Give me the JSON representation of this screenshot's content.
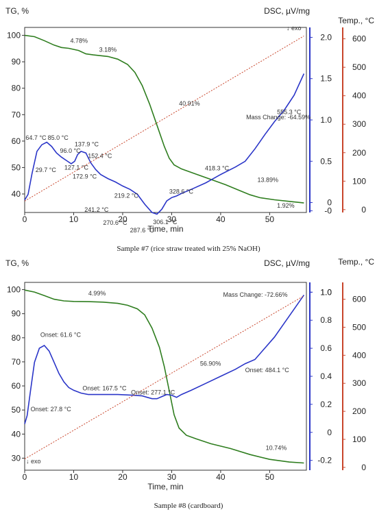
{
  "colors": {
    "tg": "#2e7d1e",
    "dsc": "#2a35c8",
    "temp": "#c8442a",
    "grid": "#c9c9c9",
    "frame": "#333333"
  },
  "chart_data": [
    {
      "type": "line",
      "caption": "Sample #7 (rice straw treated with 25% NaOH)",
      "xlabel": "Time, min",
      "xlim": [
        0,
        57.5
      ],
      "xticks": [
        "0",
        "10",
        "20",
        "30",
        "40",
        "50"
      ],
      "tg": {
        "axis_label": "TG, %",
        "ylim": [
          33,
          103
        ],
        "ticks": [
          "100",
          "90",
          "80",
          "70",
          "60",
          "50",
          "40"
        ]
      },
      "dsc": {
        "axis_label": "DSC, µV/mg",
        "ylim": [
          -0.12,
          2.12
        ],
        "ticks": [
          "2.0",
          "1.5",
          "1.0",
          "0.5",
          "0",
          "-0"
        ]
      },
      "temp": {
        "axis_label": "Temp., °C",
        "ylim": [
          -10,
          640
        ],
        "ticks": [
          "600",
          "500",
          "400",
          "300",
          "200",
          "100",
          "0"
        ]
      },
      "exo_label": "↓ exo",
      "series": [
        {
          "axis": "tg",
          "points": [
            [
              0,
              100
            ],
            [
              2,
              99.5
            ],
            [
              4,
              98
            ],
            [
              6,
              96.3
            ],
            [
              7.5,
              95.4
            ],
            [
              9,
              95.1
            ],
            [
              11,
              94.3
            ],
            [
              12.5,
              93
            ],
            [
              14,
              92.6
            ],
            [
              17,
              92
            ],
            [
              19,
              91
            ],
            [
              21,
              89
            ],
            [
              22.5,
              86
            ],
            [
              24,
              81
            ],
            [
              25.5,
              74
            ],
            [
              27,
              66
            ],
            [
              28.5,
              58
            ],
            [
              29.5,
              53.5
            ],
            [
              30.5,
              51
            ],
            [
              32,
              49.5
            ],
            [
              35,
              47.5
            ],
            [
              38,
              45.5
            ],
            [
              41,
              43.5
            ],
            [
              44,
              41.2
            ],
            [
              46,
              39.7
            ],
            [
              48,
              38.6
            ],
            [
              51,
              37.8
            ],
            [
              54,
              37.2
            ],
            [
              57,
              36.6
            ]
          ]
        },
        {
          "axis": "dsc",
          "points": [
            [
              0,
              0.03
            ],
            [
              0.7,
              0.1
            ],
            [
              1.5,
              0.35
            ],
            [
              2.5,
              0.62
            ],
            [
              3.5,
              0.7
            ],
            [
              4.5,
              0.73
            ],
            [
              5.5,
              0.68
            ],
            [
              6.5,
              0.6
            ],
            [
              7.5,
              0.55
            ],
            [
              8.5,
              0.51
            ],
            [
              9.5,
              0.47
            ],
            [
              10.2,
              0.5
            ],
            [
              10.8,
              0.58
            ],
            [
              11.5,
              0.62
            ],
            [
              12.5,
              0.6
            ],
            [
              13.5,
              0.48
            ],
            [
              14.5,
              0.4
            ],
            [
              15.5,
              0.34
            ],
            [
              17,
              0.29
            ],
            [
              18.5,
              0.25
            ],
            [
              20,
              0.2
            ],
            [
              21.5,
              0.16
            ],
            [
              23,
              0.1
            ],
            [
              24.5,
              -0.02
            ],
            [
              26,
              -0.12
            ],
            [
              27,
              -0.14
            ],
            [
              28,
              -0.08
            ],
            [
              29,
              0.02
            ],
            [
              30,
              0.06
            ],
            [
              31,
              0.08
            ],
            [
              32,
              0.11
            ],
            [
              34,
              0.16
            ],
            [
              37,
              0.24
            ],
            [
              40,
              0.34
            ],
            [
              43,
              0.43
            ],
            [
              45,
              0.5
            ],
            [
              47,
              0.65
            ],
            [
              49,
              0.82
            ],
            [
              51,
              0.98
            ],
            [
              53,
              1.12
            ],
            [
              55,
              1.3
            ],
            [
              57,
              1.56
            ]
          ]
        },
        {
          "axis": "temp",
          "points": [
            [
              0,
              30
            ],
            [
              57,
              610
            ]
          ]
        }
      ],
      "annotations": [
        {
          "text": "4.78%",
          "x": 9.3,
          "axis": "tg",
          "y": 97.2
        },
        {
          "text": "3.18%",
          "x": 15.2,
          "axis": "tg",
          "y": 93.8
        },
        {
          "text": "40.91%",
          "x": 31.5,
          "axis": "tg",
          "y": 73.5
        },
        {
          "text": "Mass Change: -64.59%",
          "x": 45.2,
          "axis": "tg",
          "y": 68.2
        },
        {
          "text": "13.89%",
          "x": 47.5,
          "axis": "tg",
          "y": 44.5
        },
        {
          "text": "1.92%",
          "x": 51.5,
          "axis": "tg",
          "y": 34.8
        },
        {
          "text": "64.7 °C",
          "x": 0.2,
          "axis": "dsc",
          "y": 0.76
        },
        {
          "text": "85.0 °C",
          "x": 4.7,
          "axis": "dsc",
          "y": 0.76
        },
        {
          "text": "96.0 °C",
          "x": 7.2,
          "axis": "dsc",
          "y": 0.6
        },
        {
          "text": "137.9 °C",
          "x": 10.2,
          "axis": "dsc",
          "y": 0.68
        },
        {
          "text": "152.4 °C",
          "x": 12.9,
          "axis": "dsc",
          "y": 0.54
        },
        {
          "text": "29.7 °C",
          "x": 2.2,
          "axis": "dsc",
          "y": 0.37
        },
        {
          "text": "127.1 °C",
          "x": 8.1,
          "axis": "dsc",
          "y": 0.4
        },
        {
          "text": "172.9 °C",
          "x": 9.8,
          "axis": "dsc",
          "y": 0.29
        },
        {
          "text": "219.2 °C",
          "x": 18.3,
          "axis": "dsc",
          "y": 0.06
        },
        {
          "text": "241.2 °C",
          "x": 12.2,
          "axis": "dsc",
          "y": -0.11
        },
        {
          "text": "270.6 °C",
          "x": 16,
          "axis": "dsc",
          "y": -0.27
        },
        {
          "text": "287.6 °C",
          "x": 21.5,
          "axis": "dsc",
          "y": -0.36
        },
        {
          "text": "306.1 °C",
          "x": 26.2,
          "axis": "dsc",
          "y": -0.26
        },
        {
          "text": "328.6 °C",
          "x": 29.5,
          "axis": "dsc",
          "y": 0.11
        },
        {
          "text": "418.3 °C",
          "x": 36.8,
          "axis": "dsc",
          "y": 0.39
        },
        {
          "text": "555.3 °C",
          "x": 51.5,
          "axis": "dsc",
          "y": 1.07
        }
      ]
    },
    {
      "type": "line",
      "caption": "Sample #8 (cardboard)",
      "xlabel": "Time, min",
      "xlim": [
        0,
        57.5
      ],
      "xticks": [
        "0",
        "10",
        "20",
        "30",
        "40",
        "50"
      ],
      "tg": {
        "axis_label": "TG, %",
        "ylim": [
          25,
          103
        ],
        "ticks": [
          "100",
          "90",
          "80",
          "70",
          "60",
          "50",
          "40",
          "30"
        ]
      },
      "dsc": {
        "axis_label": "DSC, µV/mg",
        "ylim": [
          -0.27,
          1.07
        ],
        "ticks": [
          "1.0",
          "1.0",
          "0.8",
          "0.6",
          "0.4",
          "0.2",
          "0",
          "-0.2"
        ]
      },
      "temp": {
        "axis_label": "Temp., °C",
        "ylim": [
          -10,
          660
        ],
        "ticks": [
          "600",
          "500",
          "400",
          "300",
          "200",
          "100",
          "0"
        ]
      },
      "exo_label": "↓ exo",
      "series": [
        {
          "axis": "tg",
          "points": [
            [
              0,
              99.8
            ],
            [
              2,
              99
            ],
            [
              4,
              97.5
            ],
            [
              6,
              96
            ],
            [
              8,
              95.3
            ],
            [
              10,
              95.1
            ],
            [
              13,
              95
            ],
            [
              16,
              94.8
            ],
            [
              19,
              94.3
            ],
            [
              21,
              93.5
            ],
            [
              23,
              92
            ],
            [
              24.5,
              89.5
            ],
            [
              26,
              84
            ],
            [
              27.5,
              76
            ],
            [
              28.5,
              68
            ],
            [
              29.5,
              58
            ],
            [
              30.5,
              48
            ],
            [
              31.5,
              42.5
            ],
            [
              33,
              39.5
            ],
            [
              35,
              38
            ],
            [
              38,
              36
            ],
            [
              42,
              34
            ],
            [
              46,
              31.5
            ],
            [
              50,
              29.5
            ],
            [
              54,
              28.4
            ],
            [
              57,
              28
            ]
          ]
        },
        {
          "axis": "dsc",
          "points": [
            [
              0,
              0.06
            ],
            [
              0.5,
              0.12
            ],
            [
              1.2,
              0.3
            ],
            [
              2,
              0.5
            ],
            [
              3,
              0.6
            ],
            [
              4,
              0.62
            ],
            [
              5,
              0.58
            ],
            [
              6,
              0.5
            ],
            [
              7,
              0.42
            ],
            [
              8,
              0.36
            ],
            [
              9,
              0.32
            ],
            [
              10,
              0.3
            ],
            [
              11.5,
              0.28
            ],
            [
              13,
              0.27
            ],
            [
              16,
              0.27
            ],
            [
              19,
              0.27
            ],
            [
              22,
              0.265
            ],
            [
              24,
              0.26
            ],
            [
              25,
              0.25
            ],
            [
              26,
              0.24
            ],
            [
              27,
              0.24
            ],
            [
              28,
              0.255
            ],
            [
              29,
              0.27
            ],
            [
              30,
              0.265
            ],
            [
              31,
              0.25
            ],
            [
              32,
              0.27
            ],
            [
              34,
              0.3
            ],
            [
              37,
              0.35
            ],
            [
              40,
              0.4
            ],
            [
              43,
              0.45
            ],
            [
              45,
              0.49
            ],
            [
              47,
              0.52
            ],
            [
              49,
              0.6
            ],
            [
              51,
              0.68
            ],
            [
              53,
              0.78
            ],
            [
              55,
              0.88
            ],
            [
              57,
              0.98
            ]
          ]
        },
        {
          "axis": "temp",
          "points": [
            [
              0,
              30
            ],
            [
              57,
              612
            ]
          ]
        }
      ],
      "annotations": [
        {
          "text": "4.99%",
          "x": 13,
          "axis": "tg",
          "y": 97.6
        },
        {
          "text": "Mass Change: -72.66%",
          "x": 40.5,
          "axis": "tg",
          "y": 97
        },
        {
          "text": "56.90%",
          "x": 35.8,
          "axis": "tg",
          "y": 68.4
        },
        {
          "text": "10.74%",
          "x": 49.2,
          "axis": "tg",
          "y": 33.4
        },
        {
          "text": "Onset: 61.6 °C",
          "x": 3.2,
          "axis": "dsc",
          "y": 0.68
        },
        {
          "text": "Onset: 27.8 °C",
          "x": 1.2,
          "axis": "dsc",
          "y": 0.15
        },
        {
          "text": "Onset: 167.5 °C",
          "x": 11.8,
          "axis": "dsc",
          "y": 0.3
        },
        {
          "text": "Onset: 277.1 °C",
          "x": 21.7,
          "axis": "dsc",
          "y": 0.27
        },
        {
          "text": "Onset: 484.1 °C",
          "x": 45,
          "axis": "dsc",
          "y": 0.43
        }
      ]
    }
  ]
}
